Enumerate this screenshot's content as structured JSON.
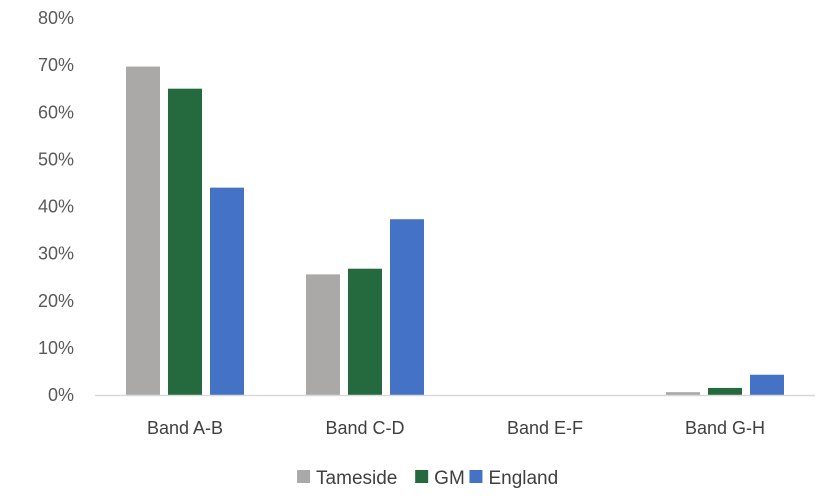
{
  "chart_data": {
    "type": "bar",
    "categories": [
      "Band A-B",
      "Band C-D",
      "Band E-F",
      "Band G-H"
    ],
    "series": [
      {
        "name": "Tameside",
        "values": [
          69.7,
          25.6,
          0,
          0.6
        ],
        "color": "#ABA9A7"
      },
      {
        "name": "GM",
        "values": [
          65.0,
          26.8,
          0,
          1.5
        ],
        "color": "#256A3E"
      },
      {
        "name": "England",
        "values": [
          44.0,
          37.3,
          0,
          4.3
        ],
        "color": "#4472C4"
      }
    ],
    "title": "",
    "xlabel": "",
    "ylabel": "",
    "ylim": [
      0,
      80
    ],
    "yticks": [
      "0%",
      "10%",
      "20%",
      "30%",
      "40%",
      "50%",
      "60%",
      "70%",
      "80%"
    ],
    "grid": false,
    "legend_position": "bottom"
  }
}
